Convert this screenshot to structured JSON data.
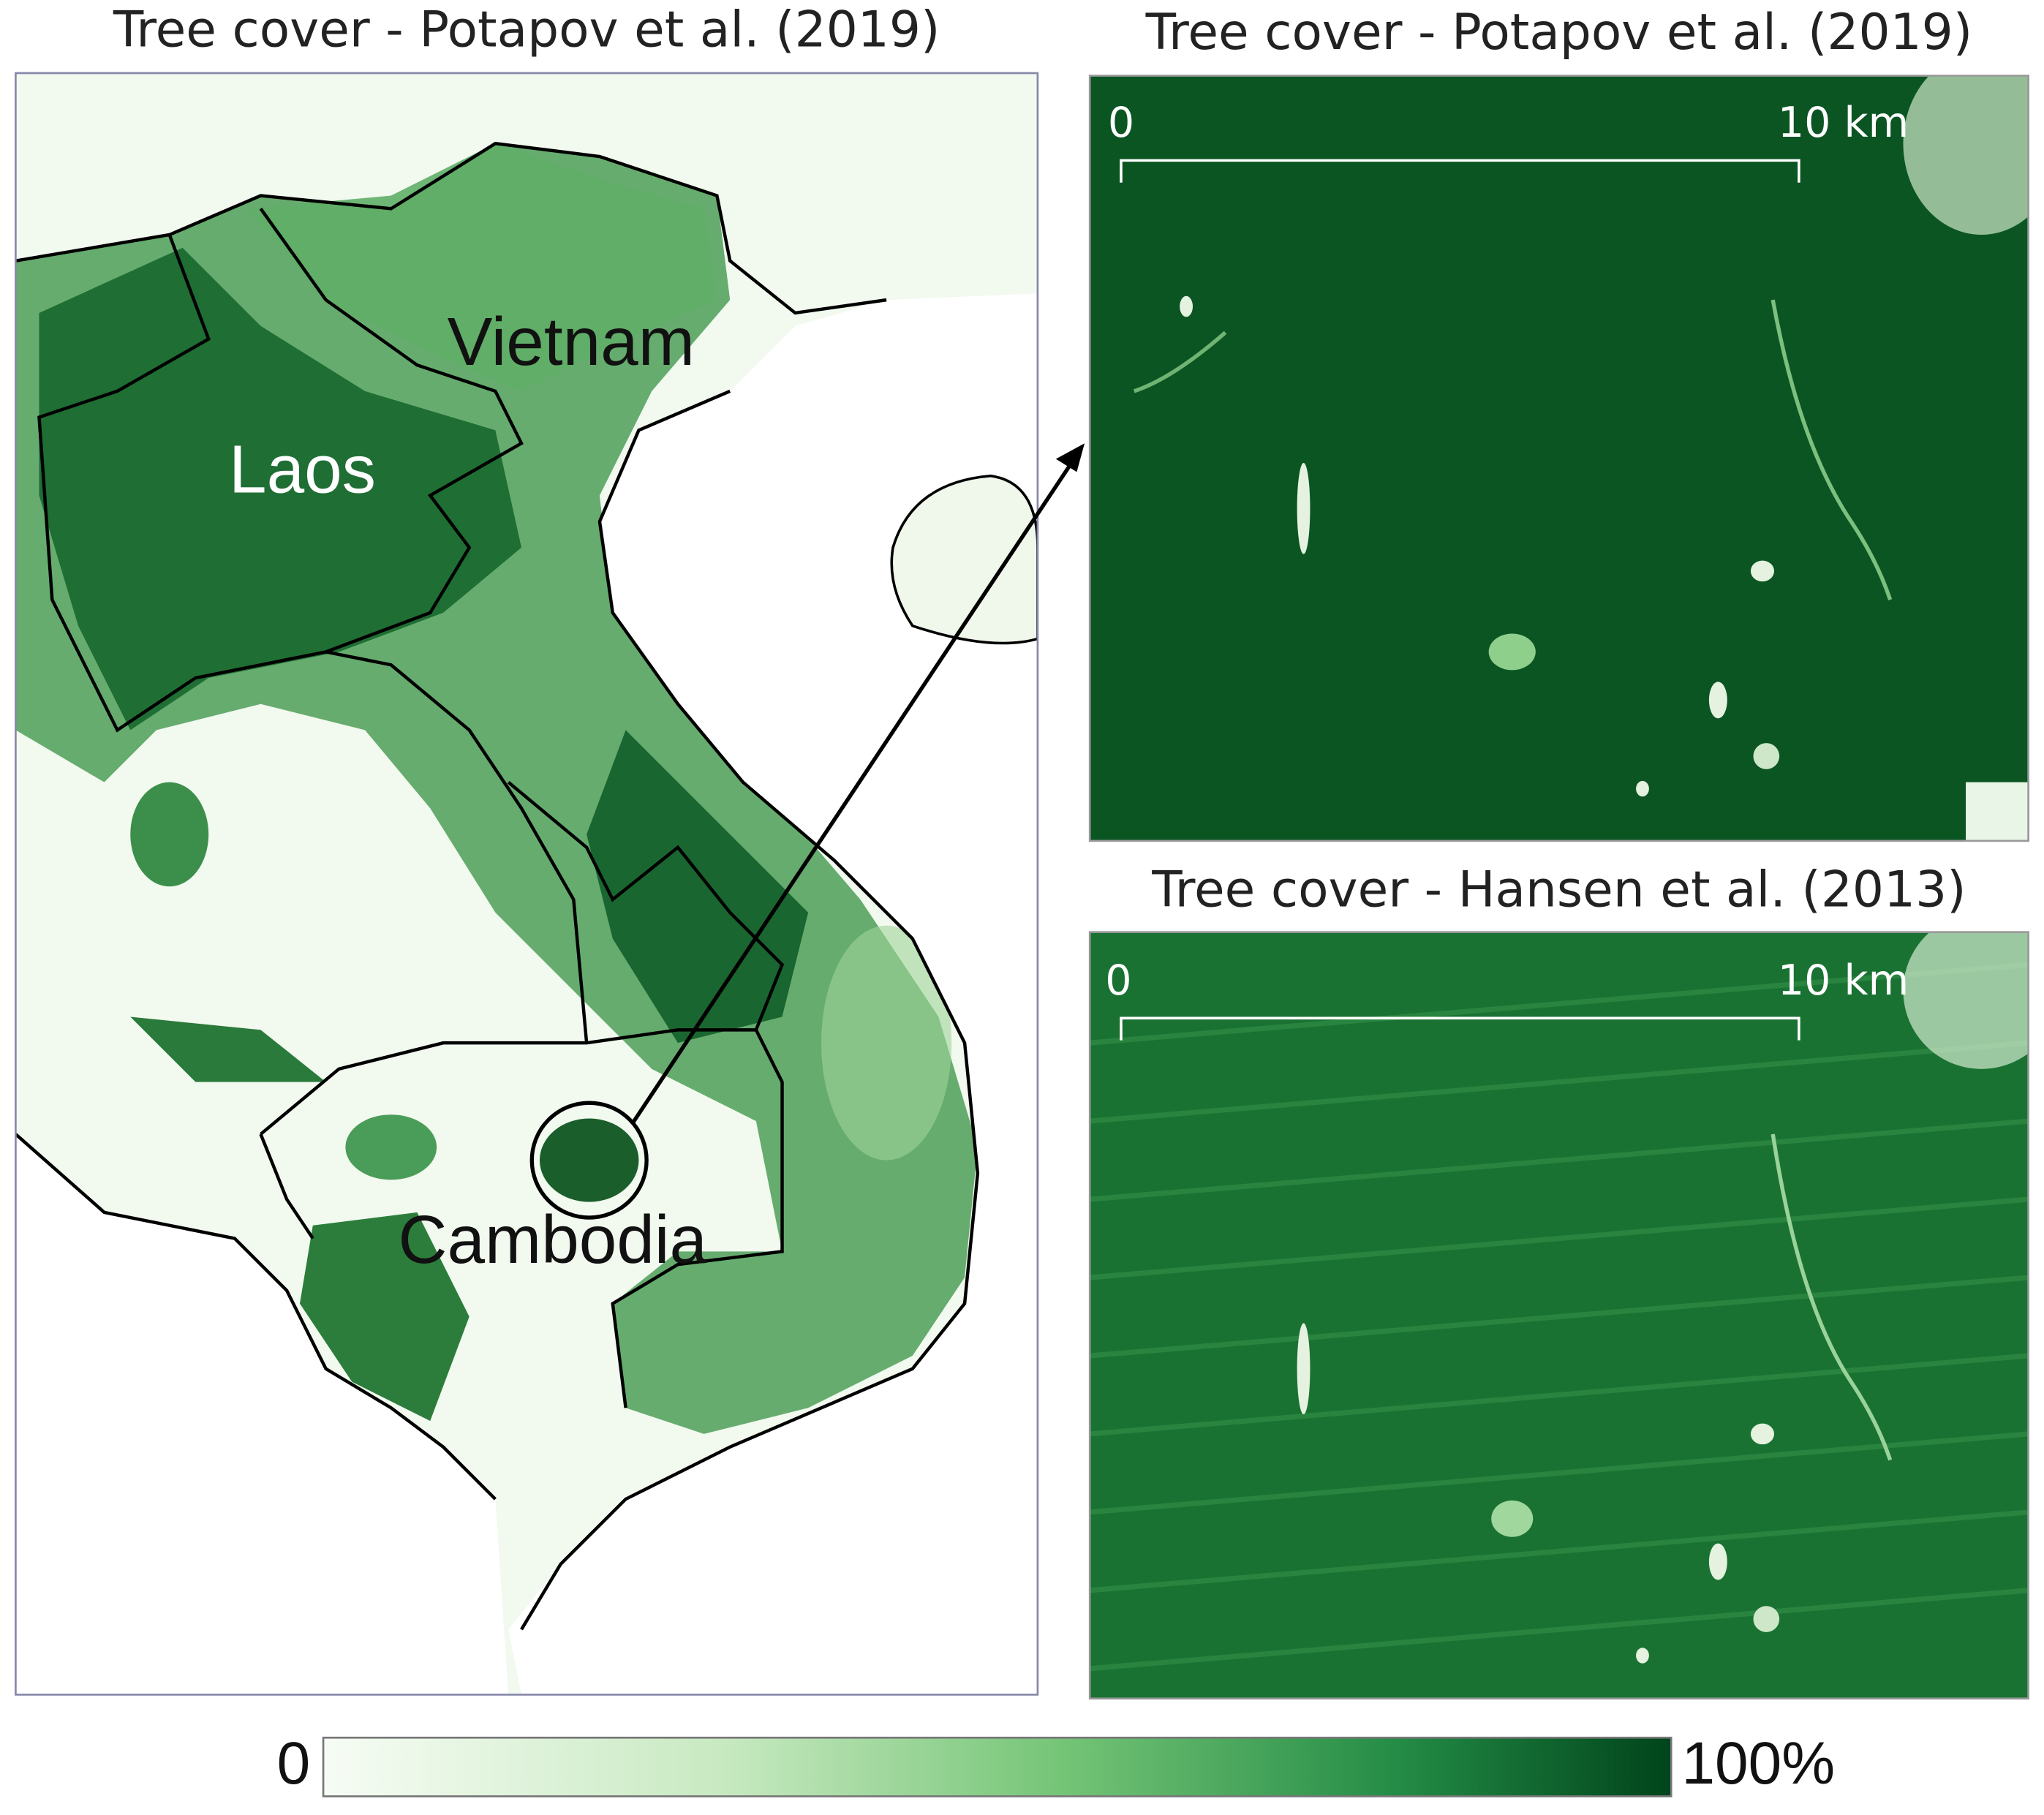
{
  "left_map": {
    "title": "Tree cover - Potapov et al. (2019)",
    "labels": [
      "Vietnam",
      "Laos",
      "Cambodia"
    ]
  },
  "inset_top": {
    "title": "Tree cover - Potapov et al. (2019)",
    "scale_start": "0",
    "scale_end": "10 km"
  },
  "inset_bottom": {
    "title": "Tree cover - Hansen et al. (2013)",
    "scale_start": "0",
    "scale_end": "10 km"
  },
  "colorbar": {
    "min_label": "0",
    "max_label": "100%"
  }
}
